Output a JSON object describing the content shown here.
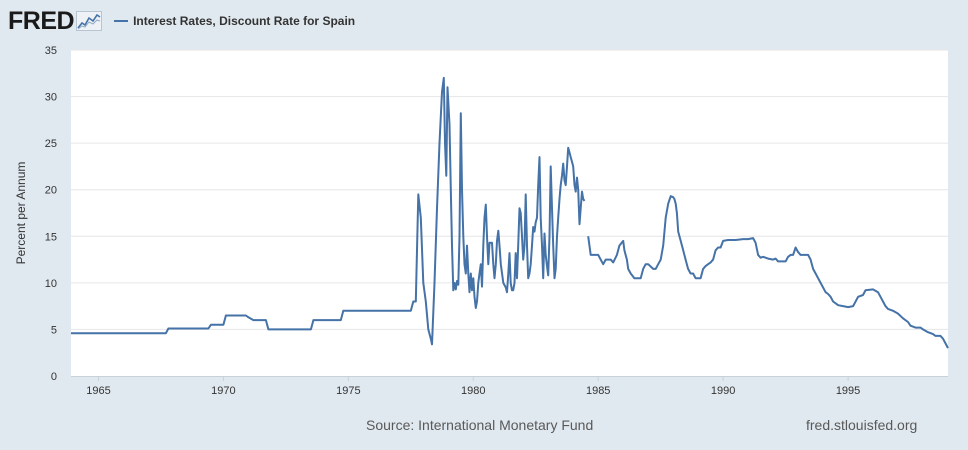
{
  "app": {
    "logo_text": "FRED"
  },
  "colors": {
    "series": "#4572a7",
    "background": "#e1e9f0",
    "plot": "#ffffff",
    "grid": "#e6e6e6"
  },
  "footer": {
    "source": "Source: International Monetary Fund",
    "site": "fred.stlouisfed.org"
  },
  "chart_data": {
    "type": "line",
    "title": "",
    "xlabel": "",
    "ylabel": "Percent per Annum",
    "xlim": [
      1963.9,
      1999.0
    ],
    "ylim": [
      0,
      35
    ],
    "yticks": [
      0,
      5,
      10,
      15,
      20,
      25,
      30,
      35
    ],
    "xticks": [
      1965,
      1970,
      1975,
      1980,
      1985,
      1990,
      1995
    ],
    "grid": true,
    "legend": "top-left",
    "series": [
      {
        "name": "Interest Rates, Discount Rate for Spain",
        "color": "#4572a7",
        "segments": [
          [
            [
              1963.9,
              4.6
            ],
            [
              1967.7,
              4.6
            ],
            [
              1967.8,
              5.1
            ],
            [
              1969.4,
              5.1
            ],
            [
              1969.5,
              5.5
            ],
            [
              1970.0,
              5.5
            ],
            [
              1970.1,
              6.5
            ],
            [
              1970.9,
              6.5
            ],
            [
              1971.0,
              6.3
            ],
            [
              1971.2,
              6.0
            ],
            [
              1971.7,
              6.0
            ],
            [
              1971.8,
              5.0
            ],
            [
              1973.5,
              5.0
            ],
            [
              1973.6,
              6.0
            ],
            [
              1974.7,
              6.0
            ],
            [
              1974.8,
              7.0
            ],
            [
              1977.5,
              7.0
            ],
            [
              1977.6,
              8.0
            ],
            [
              1977.7,
              8.0
            ],
            [
              1977.8,
              19.5
            ],
            [
              1977.9,
              17.0
            ],
            [
              1978.0,
              10.0
            ],
            [
              1978.1,
              8.0
            ],
            [
              1978.2,
              5.0
            ],
            [
              1978.3,
              4.0
            ],
            [
              1978.35,
              3.4
            ],
            [
              1978.45,
              10.0
            ],
            [
              1978.55,
              18.0
            ],
            [
              1978.65,
              25.0
            ],
            [
              1978.75,
              30.5
            ],
            [
              1978.82,
              32.0
            ],
            [
              1978.87,
              25.0
            ],
            [
              1978.92,
              21.5
            ],
            [
              1978.97,
              31.0
            ],
            [
              1979.05,
              27.0
            ],
            [
              1979.1,
              20.0
            ],
            [
              1979.15,
              14.0
            ],
            [
              1979.2,
              9.2
            ],
            [
              1979.25,
              10.0
            ],
            [
              1979.3,
              9.3
            ],
            [
              1979.35,
              10.2
            ],
            [
              1979.4,
              9.8
            ],
            [
              1979.45,
              15.0
            ],
            [
              1979.5,
              28.2
            ],
            [
              1979.55,
              20.0
            ],
            [
              1979.6,
              15.0
            ],
            [
              1979.65,
              12.0
            ],
            [
              1979.7,
              11.0
            ],
            [
              1979.75,
              14.0
            ],
            [
              1979.8,
              11.0
            ],
            [
              1979.85,
              9.0
            ],
            [
              1979.9,
              11.0
            ],
            [
              1979.95,
              9.2
            ],
            [
              1980.0,
              10.5
            ],
            [
              1980.05,
              8.5
            ],
            [
              1980.1,
              7.3
            ],
            [
              1980.15,
              8.0
            ],
            [
              1980.2,
              10.0
            ],
            [
              1980.25,
              11.0
            ],
            [
              1980.3,
              12.0
            ],
            [
              1980.35,
              9.6
            ],
            [
              1980.4,
              14.0
            ],
            [
              1980.45,
              17.0
            ],
            [
              1980.5,
              18.4
            ],
            [
              1980.55,
              15.0
            ],
            [
              1980.6,
              12.0
            ],
            [
              1980.65,
              14.3
            ],
            [
              1980.75,
              14.3
            ],
            [
              1980.8,
              12.0
            ],
            [
              1980.85,
              10.5
            ],
            [
              1980.9,
              12.0
            ],
            [
              1980.95,
              14.5
            ],
            [
              1981.0,
              15.6
            ],
            [
              1981.05,
              14.0
            ],
            [
              1981.1,
              12.0
            ],
            [
              1981.2,
              10.0
            ],
            [
              1981.3,
              9.5
            ],
            [
              1981.35,
              9.0
            ],
            [
              1981.4,
              11.0
            ],
            [
              1981.45,
              13.2
            ],
            [
              1981.5,
              10.0
            ],
            [
              1981.55,
              9.2
            ],
            [
              1981.6,
              9.2
            ],
            [
              1981.65,
              10.0
            ],
            [
              1981.7,
              13.2
            ],
            [
              1981.75,
              10.5
            ],
            [
              1981.8,
              14.0
            ],
            [
              1981.85,
              18.0
            ],
            [
              1981.9,
              17.5
            ],
            [
              1981.95,
              15.0
            ],
            [
              1982.0,
              12.5
            ],
            [
              1982.05,
              14.0
            ],
            [
              1982.1,
              19.5
            ],
            [
              1982.15,
              14.0
            ],
            [
              1982.2,
              10.5
            ],
            [
              1982.25,
              11.0
            ],
            [
              1982.3,
              12.0
            ],
            [
              1982.35,
              14.0
            ],
            [
              1982.4,
              16.0
            ],
            [
              1982.45,
              15.5
            ],
            [
              1982.5,
              16.5
            ],
            [
              1982.55,
              17.0
            ],
            [
              1982.6,
              20.5
            ],
            [
              1982.65,
              23.5
            ],
            [
              1982.7,
              17.0
            ],
            [
              1982.75,
              14.0
            ],
            [
              1982.8,
              10.5
            ],
            [
              1982.85,
              15.3
            ],
            [
              1982.9,
              13.0
            ],
            [
              1982.95,
              11.8
            ],
            [
              1983.0,
              10.8
            ],
            [
              1983.05,
              15.0
            ],
            [
              1983.1,
              22.5
            ],
            [
              1983.15,
              18.0
            ],
            [
              1983.2,
              14.0
            ],
            [
              1983.25,
              10.5
            ],
            [
              1983.3,
              11.5
            ],
            [
              1983.35,
              15.0
            ],
            [
              1983.4,
              17.0
            ],
            [
              1983.45,
              19.0
            ],
            [
              1983.5,
              20.5
            ],
            [
              1983.55,
              21.5
            ],
            [
              1983.6,
              22.8
            ],
            [
              1983.65,
              21.0
            ],
            [
              1983.7,
              20.5
            ],
            [
              1983.75,
              22.5
            ],
            [
              1983.8,
              24.5
            ],
            [
              1983.85,
              24.0
            ],
            [
              1983.9,
              23.5
            ],
            [
              1983.95,
              23.0
            ],
            [
              1984.0,
              22.5
            ],
            [
              1984.05,
              20.5
            ],
            [
              1984.1,
              19.8
            ],
            [
              1984.15,
              21.3
            ],
            [
              1984.2,
              20.0
            ],
            [
              1984.25,
              16.3
            ],
            [
              1984.3,
              18.0
            ],
            [
              1984.35,
              19.8
            ],
            [
              1984.4,
              19.0
            ],
            [
              1984.45,
              18.8
            ]
          ],
          [
            [
              1984.6,
              15.0
            ],
            [
              1984.7,
              13.0
            ],
            [
              1985.0,
              13.0
            ],
            [
              1985.1,
              12.5
            ],
            [
              1985.2,
              12.0
            ],
            [
              1985.3,
              12.5
            ],
            [
              1985.5,
              12.5
            ],
            [
              1985.6,
              12.2
            ],
            [
              1985.75,
              13.0
            ],
            [
              1985.85,
              14.0
            ],
            [
              1986.0,
              14.5
            ],
            [
              1986.05,
              13.5
            ],
            [
              1986.15,
              12.5
            ],
            [
              1986.2,
              11.5
            ],
            [
              1986.3,
              11.0
            ],
            [
              1986.45,
              10.5
            ],
            [
              1986.7,
              10.5
            ],
            [
              1986.8,
              11.5
            ],
            [
              1986.9,
              12.0
            ],
            [
              1987.0,
              12.0
            ],
            [
              1987.2,
              11.5
            ],
            [
              1987.3,
              11.5
            ],
            [
              1987.4,
              12.0
            ],
            [
              1987.5,
              12.5
            ],
            [
              1987.6,
              14.0
            ],
            [
              1987.7,
              17.0
            ],
            [
              1987.8,
              18.5
            ],
            [
              1987.9,
              19.3
            ],
            [
              1988.0,
              19.2
            ],
            [
              1988.05,
              19.0
            ],
            [
              1988.1,
              18.5
            ],
            [
              1988.15,
              17.5
            ],
            [
              1988.2,
              15.5
            ],
            [
              1988.3,
              14.5
            ],
            [
              1988.4,
              13.5
            ],
            [
              1988.5,
              12.5
            ],
            [
              1988.6,
              11.5
            ],
            [
              1988.7,
              11.0
            ],
            [
              1988.8,
              11.0
            ],
            [
              1988.9,
              10.5
            ],
            [
              1989.0,
              10.5
            ],
            [
              1989.1,
              10.5
            ],
            [
              1989.2,
              11.5
            ],
            [
              1989.3,
              11.8
            ],
            [
              1989.4,
              12.0
            ],
            [
              1989.5,
              12.2
            ],
            [
              1989.6,
              12.5
            ],
            [
              1989.7,
              13.5
            ],
            [
              1989.8,
              13.8
            ],
            [
              1989.9,
              13.8
            ],
            [
              1990.0,
              14.5
            ],
            [
              1990.2,
              14.6
            ],
            [
              1990.5,
              14.6
            ],
            [
              1990.8,
              14.7
            ],
            [
              1991.0,
              14.7
            ],
            [
              1991.2,
              14.8
            ],
            [
              1991.3,
              14.3
            ],
            [
              1991.4,
              13.0
            ],
            [
              1991.5,
              12.7
            ],
            [
              1991.6,
              12.8
            ],
            [
              1991.7,
              12.7
            ],
            [
              1991.8,
              12.6
            ],
            [
              1992.0,
              12.5
            ],
            [
              1992.1,
              12.6
            ],
            [
              1992.2,
              12.3
            ],
            [
              1992.5,
              12.3
            ],
            [
              1992.6,
              12.8
            ],
            [
              1992.7,
              13.0
            ],
            [
              1992.8,
              13.0
            ],
            [
              1992.9,
              13.8
            ],
            [
              1993.0,
              13.3
            ],
            [
              1993.1,
              13.0
            ],
            [
              1993.2,
              13.0
            ],
            [
              1993.4,
              13.0
            ],
            [
              1993.5,
              12.5
            ],
            [
              1993.6,
              11.5
            ],
            [
              1993.7,
              11.0
            ],
            [
              1993.8,
              10.5
            ],
            [
              1993.9,
              10.0
            ],
            [
              1994.0,
              9.5
            ],
            [
              1994.1,
              9.0
            ],
            [
              1994.2,
              8.8
            ],
            [
              1994.3,
              8.5
            ],
            [
              1994.4,
              8.0
            ],
            [
              1994.5,
              7.8
            ],
            [
              1994.6,
              7.6
            ],
            [
              1994.8,
              7.5
            ],
            [
              1995.0,
              7.4
            ],
            [
              1995.2,
              7.5
            ],
            [
              1995.3,
              8.0
            ],
            [
              1995.4,
              8.5
            ],
            [
              1995.6,
              8.7
            ],
            [
              1995.7,
              9.2
            ],
            [
              1996.0,
              9.3
            ],
            [
              1996.2,
              9.0
            ],
            [
              1996.3,
              8.5
            ],
            [
              1996.4,
              8.0
            ],
            [
              1996.5,
              7.5
            ],
            [
              1996.6,
              7.2
            ],
            [
              1996.8,
              7.0
            ],
            [
              1997.0,
              6.7
            ],
            [
              1997.2,
              6.2
            ],
            [
              1997.4,
              5.8
            ],
            [
              1997.5,
              5.4
            ],
            [
              1997.7,
              5.2
            ],
            [
              1997.9,
              5.2
            ],
            [
              1998.0,
              5.0
            ],
            [
              1998.2,
              4.7
            ],
            [
              1998.4,
              4.5
            ],
            [
              1998.5,
              4.3
            ],
            [
              1998.7,
              4.3
            ],
            [
              1998.8,
              4.0
            ],
            [
              1998.9,
              3.5
            ],
            [
              1999.0,
              3.0
            ]
          ]
        ]
      }
    ]
  }
}
